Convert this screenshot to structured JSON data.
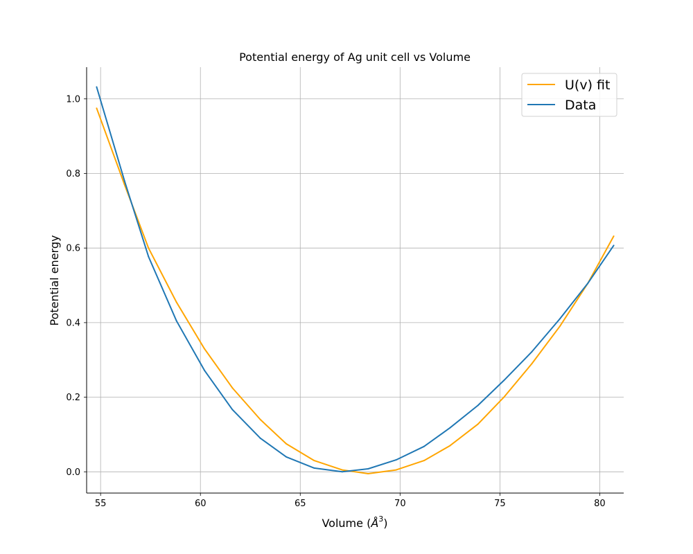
{
  "chart_data": {
    "type": "line",
    "title": "Potential energy of Ag unit cell vs Volume",
    "xlabel": "Volume (",
    "xlabel_unit_letter": "Å",
    "xlabel_unit_power": "3",
    "xlabel_close": ")",
    "ylabel": "Potential energy",
    "xlim": [
      54.3,
      81.2
    ],
    "ylim": [
      -0.057,
      1.085
    ],
    "xticks": [
      55,
      60,
      65,
      70,
      75,
      80
    ],
    "xtick_labels": [
      "55",
      "60",
      "65",
      "70",
      "75",
      "80"
    ],
    "yticks": [
      0.0,
      0.2,
      0.4,
      0.6,
      0.8,
      1.0
    ],
    "ytick_labels": [
      "0.0",
      "0.2",
      "0.4",
      "0.6",
      "0.8",
      "1.0"
    ],
    "grid": true,
    "legend_position": "top-right",
    "x": [
      54.8,
      56.2,
      57.4,
      58.8,
      60.2,
      61.6,
      63.0,
      64.3,
      65.7,
      67.1,
      68.4,
      69.8,
      71.2,
      72.5,
      73.9,
      75.2,
      76.6,
      78.0,
      79.4,
      80.7
    ],
    "series": [
      {
        "name": "U(v) fit",
        "color": "#ffa500",
        "values": [
          0.975,
          0.77,
          0.6,
          0.455,
          0.33,
          0.225,
          0.14,
          0.075,
          0.03,
          0.005,
          -0.005,
          0.005,
          0.03,
          0.07,
          0.128,
          0.2,
          0.29,
          0.39,
          0.505,
          0.632
        ]
      },
      {
        "name": "Data",
        "color": "#1f77b4",
        "values": [
          1.032,
          0.78,
          0.577,
          0.405,
          0.272,
          0.167,
          0.09,
          0.04,
          0.01,
          0.0,
          0.008,
          0.032,
          0.068,
          0.118,
          0.178,
          0.245,
          0.322,
          0.41,
          0.505,
          0.607
        ]
      }
    ]
  }
}
